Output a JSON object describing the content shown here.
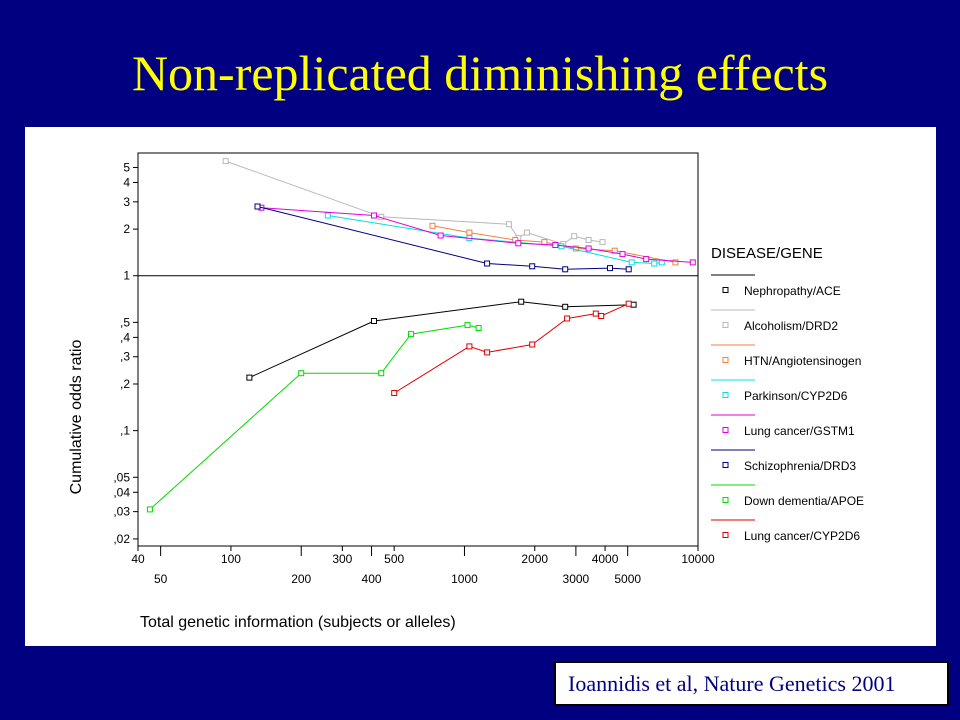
{
  "slide": {
    "title": "Non-replicated diminishing effects",
    "citation": "Ioannidis et al, Nature Genetics 2001"
  },
  "chart_data": {
    "type": "line",
    "title": "",
    "xlabel": "Total genetic information (subjects or alleles)",
    "ylabel": "Cumulative odds ratio",
    "x_scale": "log",
    "y_scale": "log",
    "xlim": [
      40,
      10000
    ],
    "ylim": [
      0.018,
      6.2
    ],
    "reference_line_y": 1,
    "grid": false,
    "legend_placement": "right",
    "legend_title": "DISEASE/GENE",
    "x_ticks_row1": [
      {
        "value": 40,
        "label": "40"
      },
      {
        "value": 100,
        "label": "100"
      },
      {
        "value": 300,
        "label": "300"
      },
      {
        "value": 500,
        "label": "500"
      },
      {
        "value": 2000,
        "label": "2000"
      },
      {
        "value": 4000,
        "label": "4000"
      },
      {
        "value": 10000,
        "label": "10000"
      }
    ],
    "x_ticks_row2": [
      {
        "value": 50,
        "label": "50"
      },
      {
        "value": 200,
        "label": "200"
      },
      {
        "value": 400,
        "label": "400"
      },
      {
        "value": 1000,
        "label": "1000"
      },
      {
        "value": 3000,
        "label": "3000"
      },
      {
        "value": 5000,
        "label": "5000"
      }
    ],
    "y_ticks": [
      {
        "value": 5,
        "label": "5"
      },
      {
        "value": 4,
        "label": "4"
      },
      {
        "value": 3,
        "label": "3"
      },
      {
        "value": 2,
        "label": "2"
      },
      {
        "value": 1,
        "label": "1"
      },
      {
        "value": 0.5,
        "label": ",5"
      },
      {
        "value": 0.4,
        "label": ",4"
      },
      {
        "value": 0.3,
        "label": ",3"
      },
      {
        "value": 0.2,
        "label": ",2"
      },
      {
        "value": 0.1,
        "label": ",1"
      },
      {
        "value": 0.05,
        "label": ",05"
      },
      {
        "value": 0.04,
        "label": ",04"
      },
      {
        "value": 0.03,
        "label": ",03"
      },
      {
        "value": 0.02,
        "label": ",02"
      }
    ],
    "series": [
      {
        "name": "Nephropathy/ACE",
        "color": "#000000",
        "points": [
          [
            120,
            0.22
          ],
          [
            410,
            0.51
          ],
          [
            1750,
            0.68
          ],
          [
            2700,
            0.63
          ],
          [
            5300,
            0.65
          ]
        ]
      },
      {
        "name": "Alcoholism/DRD2",
        "color": "#b8b8b8",
        "points": [
          [
            95,
            5.5
          ],
          [
            440,
            2.4
          ],
          [
            1550,
            2.15
          ],
          [
            1700,
            1.75
          ],
          [
            1850,
            1.9
          ],
          [
            2650,
            1.6
          ],
          [
            2950,
            1.8
          ],
          [
            3400,
            1.7
          ],
          [
            3900,
            1.65
          ]
        ]
      },
      {
        "name": "HTN/Angiotensinogen",
        "color": "#f08040",
        "points": [
          [
            730,
            2.1
          ],
          [
            1050,
            1.9
          ],
          [
            1650,
            1.7
          ],
          [
            2200,
            1.65
          ],
          [
            3000,
            1.5
          ],
          [
            4400,
            1.45
          ],
          [
            8000,
            1.22
          ]
        ]
      },
      {
        "name": "Parkinson/CYP2D6",
        "color": "#00e0e0",
        "points": [
          [
            260,
            2.45
          ],
          [
            1050,
            1.75
          ],
          [
            2600,
            1.55
          ],
          [
            5200,
            1.22
          ],
          [
            6500,
            1.2
          ],
          [
            7000,
            1.22
          ]
        ]
      },
      {
        "name": "Lung cancer/GSTM1",
        "color": "#e000e0",
        "points": [
          [
            135,
            2.75
          ],
          [
            410,
            2.45
          ],
          [
            790,
            1.82
          ],
          [
            1700,
            1.62
          ],
          [
            2450,
            1.58
          ],
          [
            3400,
            1.5
          ],
          [
            4750,
            1.38
          ],
          [
            6000,
            1.28
          ],
          [
            9500,
            1.22
          ]
        ]
      },
      {
        "name": "Schizophrenia/DRD3",
        "color": "#000080",
        "points": [
          [
            130,
            2.8
          ],
          [
            1250,
            1.2
          ],
          [
            1950,
            1.15
          ],
          [
            2700,
            1.1
          ],
          [
            4200,
            1.12
          ],
          [
            5050,
            1.1
          ]
        ]
      },
      {
        "name": "Down dementia/APOE",
        "color": "#00dd00",
        "points": [
          [
            45,
            0.031
          ],
          [
            200,
            0.235
          ],
          [
            440,
            0.235
          ],
          [
            590,
            0.42
          ],
          [
            1030,
            0.48
          ],
          [
            1150,
            0.46
          ]
        ]
      },
      {
        "name": "Lung cancer/CYP2D6",
        "color": "#e00000",
        "points": [
          [
            500,
            0.175
          ],
          [
            1050,
            0.35
          ],
          [
            1250,
            0.32
          ],
          [
            1950,
            0.36
          ],
          [
            2750,
            0.53
          ],
          [
            3650,
            0.57
          ],
          [
            3850,
            0.55
          ],
          [
            5050,
            0.66
          ]
        ]
      }
    ]
  }
}
